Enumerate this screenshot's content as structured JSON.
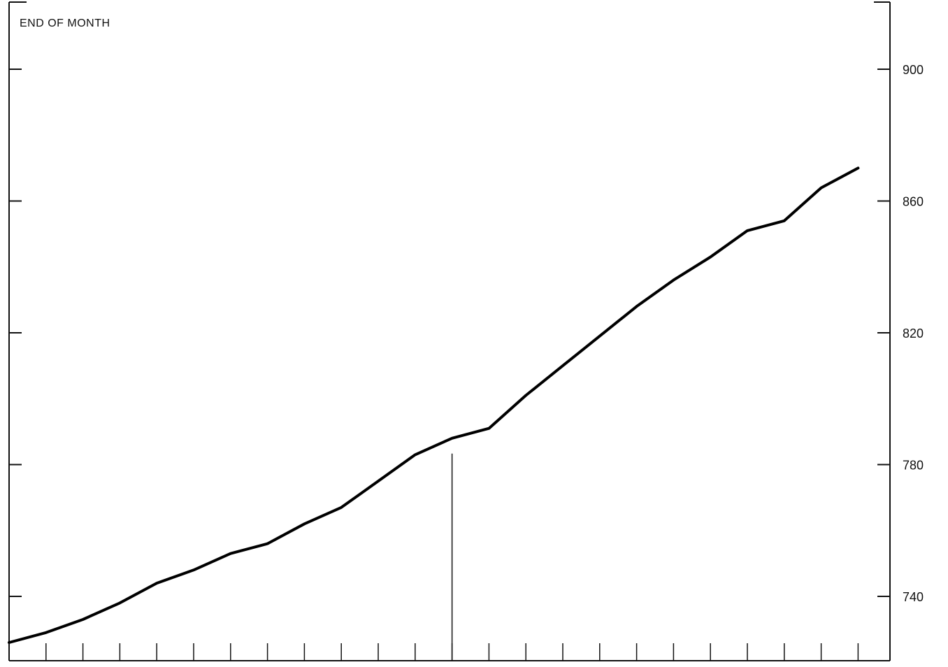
{
  "chart_data": {
    "type": "line",
    "annotation": "END OF MONTH",
    "y_axis": {
      "side": "right",
      "ylim": [
        725,
        920
      ],
      "ticks": [
        740,
        780,
        820,
        860,
        900
      ],
      "tick_labels": [
        "740",
        "780",
        "820",
        "860",
        "900"
      ]
    },
    "x_axis": {
      "tick_count": 23,
      "tick_labels": []
    },
    "divider_after_index": 12,
    "grid": false,
    "legend": "none",
    "series": [
      {
        "color": "#000000",
        "x": [
          0,
          1,
          2,
          3,
          4,
          5,
          6,
          7,
          8,
          9,
          10,
          11,
          12,
          13,
          14,
          15,
          16,
          17,
          18,
          19,
          20,
          21,
          22,
          23
        ],
        "values": [
          726,
          729,
          733,
          738,
          744,
          748,
          753,
          756,
          762,
          767,
          775,
          783,
          788,
          791,
          801,
          810,
          819,
          828,
          836,
          843,
          851,
          854,
          864,
          870
        ]
      }
    ]
  }
}
